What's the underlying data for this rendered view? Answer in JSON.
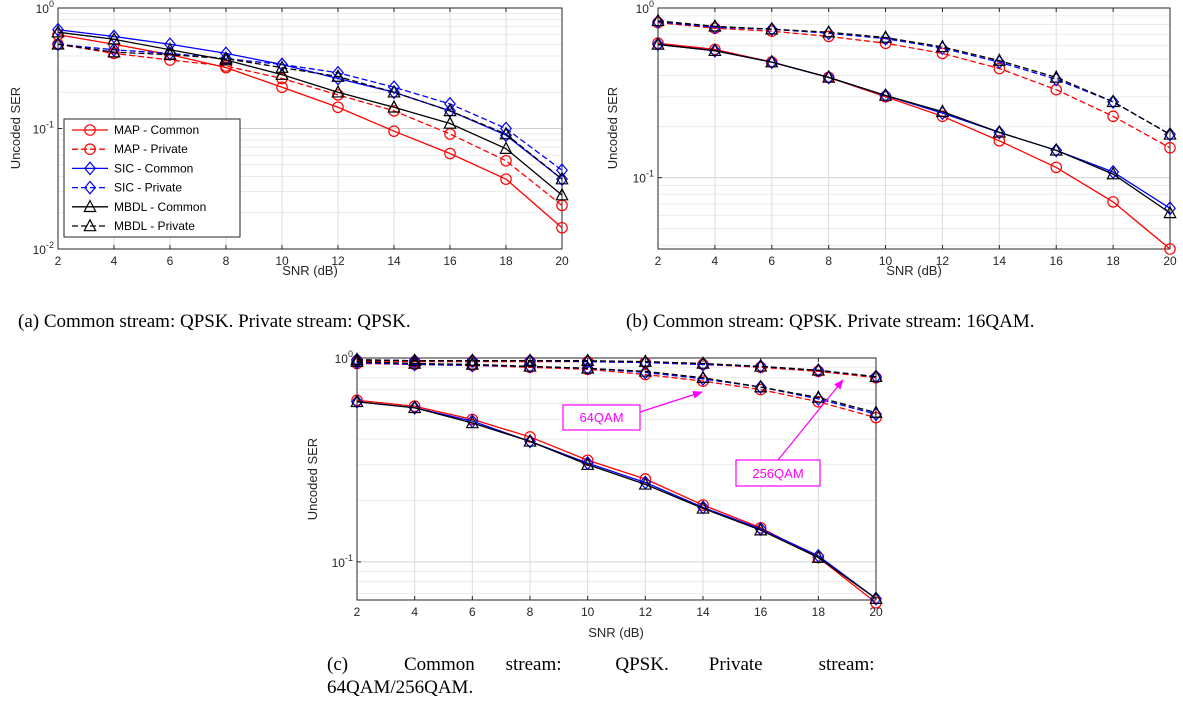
{
  "colors": {
    "map": "#ff0000",
    "sic": "#0000ff",
    "mbdl": "#000000",
    "annotation": "#ff00ff",
    "grid": "#dcdcdc"
  },
  "legend": {
    "entries": [
      "MAP - Common",
      "MAP - Private",
      "SIC - Common",
      "SIC - Private",
      "MBDL - Common",
      "MBDL - Private"
    ]
  },
  "chart_data": [
    {
      "id": "a",
      "type": "line",
      "yscale": "log",
      "caption": "(a) Common stream: QPSK. Private stream: QPSK.",
      "xlabel": "SNR (dB)",
      "ylabel": "Uncoded SER",
      "xlim": [
        2,
        20
      ],
      "ylim": [
        0.01,
        1
      ],
      "grid": true,
      "legend_position": "left-middle",
      "x": [
        2,
        4,
        6,
        8,
        10,
        12,
        14,
        16,
        18,
        20
      ],
      "xticks": [
        "2",
        "4",
        "6",
        "8",
        "10",
        "12",
        "14",
        "16",
        "18",
        "20"
      ],
      "yticks": [
        {
          "base": "10",
          "exp": "-2",
          "v": 0.01
        },
        {
          "base": "10",
          "exp": "-1",
          "v": 0.1
        },
        {
          "base": "10",
          "exp": "0",
          "v": 1
        }
      ],
      "series": [
        {
          "name": "MAP - Common",
          "values": [
            0.6,
            0.5,
            0.41,
            0.32,
            0.22,
            0.15,
            0.095,
            0.062,
            0.038,
            0.015
          ]
        },
        {
          "name": "MAP - Private",
          "values": [
            0.5,
            0.42,
            0.37,
            0.33,
            0.26,
            0.19,
            0.14,
            0.09,
            0.054,
            0.023
          ]
        },
        {
          "name": "SIC - Common",
          "values": [
            0.66,
            0.58,
            0.5,
            0.42,
            0.34,
            0.26,
            0.2,
            0.14,
            0.088,
            0.038
          ]
        },
        {
          "name": "SIC - Private",
          "values": [
            0.5,
            0.45,
            0.42,
            0.38,
            0.34,
            0.29,
            0.22,
            0.16,
            0.1,
            0.045
          ]
        },
        {
          "name": "MBDL - Common",
          "values": [
            0.63,
            0.55,
            0.45,
            0.37,
            0.28,
            0.2,
            0.15,
            0.11,
            0.068,
            0.028
          ]
        },
        {
          "name": "MBDL - Private",
          "values": [
            0.5,
            0.43,
            0.41,
            0.38,
            0.32,
            0.27,
            0.2,
            0.14,
            0.09,
            0.038
          ]
        }
      ]
    },
    {
      "id": "b",
      "type": "line",
      "yscale": "log",
      "caption": "(b) Common stream: QPSK. Private stream: 16QAM.",
      "xlabel": "SNR (dB)",
      "ylabel": "Uncoded SER",
      "xlim": [
        2,
        20
      ],
      "ylim": [
        0.038,
        1
      ],
      "grid": true,
      "x": [
        2,
        4,
        6,
        8,
        10,
        12,
        14,
        16,
        18,
        20
      ],
      "xticks": [
        "2",
        "4",
        "6",
        "8",
        "10",
        "12",
        "14",
        "16",
        "18",
        "20"
      ],
      "yticks": [
        {
          "base": "10",
          "exp": "-1",
          "v": 0.1
        },
        {
          "base": "10",
          "exp": "0",
          "v": 1
        }
      ],
      "series": [
        {
          "name": "MAP - Common",
          "values": [
            0.62,
            0.57,
            0.48,
            0.39,
            0.3,
            0.23,
            0.165,
            0.115,
            0.072,
            0.038
          ]
        },
        {
          "name": "MAP - Private",
          "values": [
            0.82,
            0.76,
            0.73,
            0.68,
            0.62,
            0.54,
            0.44,
            0.33,
            0.23,
            0.15
          ]
        },
        {
          "name": "SIC - Common",
          "values": [
            0.61,
            0.56,
            0.48,
            0.39,
            0.305,
            0.24,
            0.185,
            0.145,
            0.108,
            0.066
          ]
        },
        {
          "name": "SIC - Private",
          "values": [
            0.83,
            0.77,
            0.75,
            0.71,
            0.66,
            0.58,
            0.48,
            0.38,
            0.28,
            0.18
          ]
        },
        {
          "name": "MBDL - Common",
          "values": [
            0.61,
            0.56,
            0.48,
            0.39,
            0.305,
            0.245,
            0.185,
            0.145,
            0.105,
            0.062
          ]
        },
        {
          "name": "MBDL - Private",
          "values": [
            0.84,
            0.78,
            0.75,
            0.72,
            0.67,
            0.59,
            0.49,
            0.39,
            0.28,
            0.18
          ]
        }
      ]
    },
    {
      "id": "c",
      "type": "line",
      "yscale": "log",
      "caption": "(c) Common stream: QPSK. Private stream: 64QAM/256QAM.",
      "xlabel": "SNR (dB)",
      "ylabel": "Uncoded SER",
      "xlim": [
        2,
        20
      ],
      "ylim": [
        0.065,
        1
      ],
      "grid": true,
      "x": [
        2,
        4,
        6,
        8,
        10,
        12,
        14,
        16,
        18,
        20
      ],
      "xticks": [
        "2",
        "4",
        "6",
        "8",
        "10",
        "12",
        "14",
        "16",
        "18",
        "20"
      ],
      "yticks": [
        {
          "base": "10",
          "exp": "-1",
          "v": 0.1
        },
        {
          "base": "10",
          "exp": "0",
          "v": 1
        }
      ],
      "annotations": [
        "64QAM",
        "256QAM"
      ],
      "series": [
        {
          "name": "MAP - Common",
          "values": [
            0.62,
            0.58,
            0.5,
            0.41,
            0.315,
            0.255,
            0.19,
            0.147,
            0.105,
            0.063
          ]
        },
        {
          "name": "MAP - Private (64QAM)",
          "values": [
            0.94,
            0.93,
            0.92,
            0.9,
            0.88,
            0.83,
            0.77,
            0.7,
            0.61,
            0.51
          ]
        },
        {
          "name": "MAP - Private (256QAM)",
          "values": [
            0.97,
            0.96,
            0.96,
            0.96,
            0.96,
            0.95,
            0.93,
            0.9,
            0.86,
            0.8
          ]
        },
        {
          "name": "SIC - Common",
          "values": [
            0.61,
            0.57,
            0.49,
            0.39,
            0.305,
            0.245,
            0.185,
            0.145,
            0.107,
            0.066
          ]
        },
        {
          "name": "SIC - Private (64QAM)",
          "values": [
            0.95,
            0.93,
            0.92,
            0.91,
            0.89,
            0.85,
            0.79,
            0.72,
            0.63,
            0.53
          ]
        },
        {
          "name": "SIC - Private (256QAM)",
          "values": [
            0.98,
            0.97,
            0.97,
            0.97,
            0.96,
            0.95,
            0.93,
            0.91,
            0.87,
            0.81
          ]
        },
        {
          "name": "MBDL - Common",
          "values": [
            0.61,
            0.57,
            0.48,
            0.39,
            0.3,
            0.24,
            0.183,
            0.143,
            0.105,
            0.066
          ]
        },
        {
          "name": "MBDL - Private (64QAM)",
          "values": [
            0.96,
            0.94,
            0.93,
            0.91,
            0.89,
            0.86,
            0.8,
            0.72,
            0.64,
            0.54
          ]
        },
        {
          "name": "MBDL - Private (256QAM)",
          "values": [
            0.98,
            0.97,
            0.97,
            0.97,
            0.97,
            0.96,
            0.94,
            0.91,
            0.87,
            0.81
          ]
        }
      ]
    }
  ]
}
